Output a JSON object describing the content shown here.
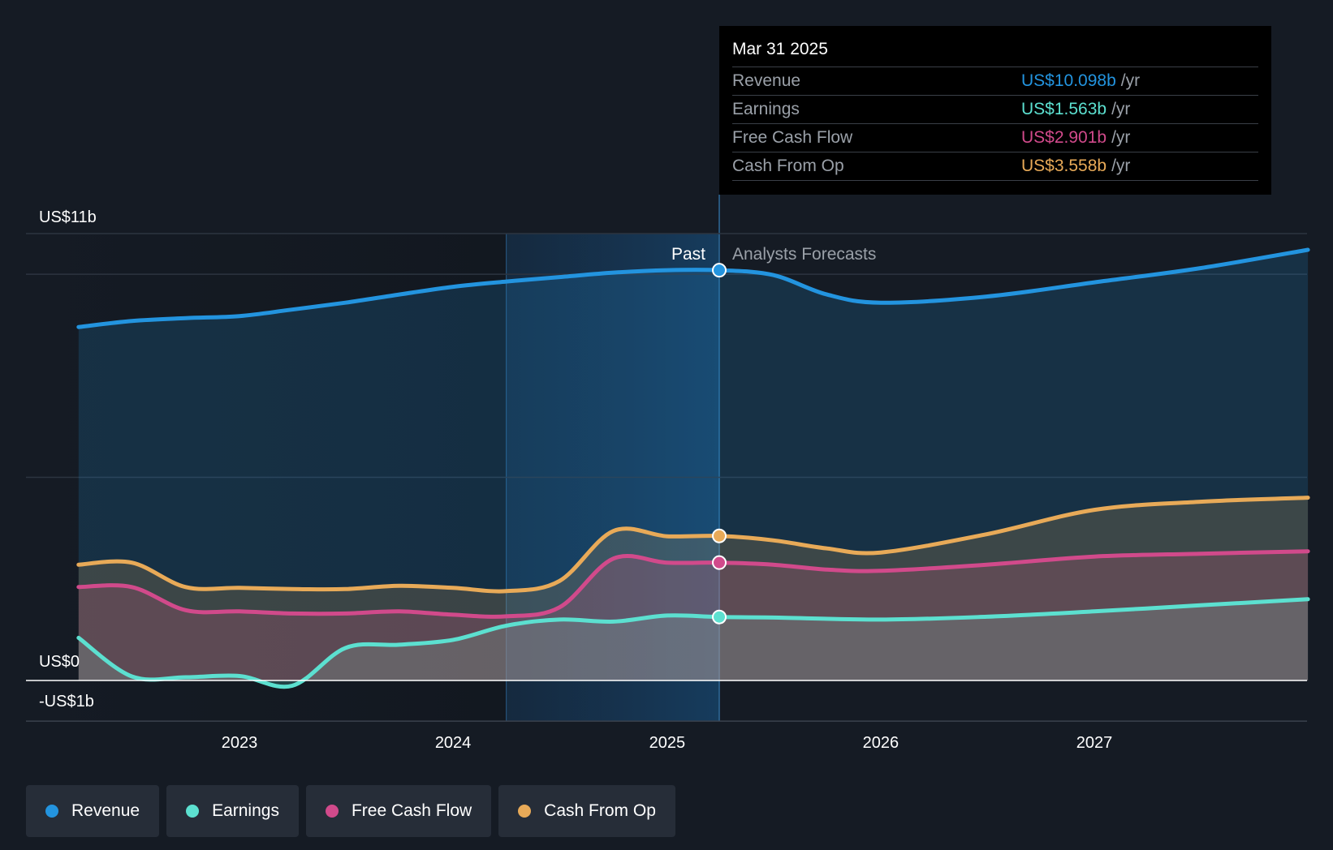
{
  "chart_data": {
    "type": "area",
    "y_unit": "US$ billions",
    "ylim": [
      -1,
      11
    ],
    "x_ticks": [
      "2023",
      "2024",
      "2025",
      "2026",
      "2027"
    ],
    "y_axis_labels": {
      "top": "US$11b",
      "zero": "US$0",
      "bottom": "-US$1b"
    },
    "past_label": "Past",
    "forecast_label": "Analysts Forecasts",
    "divider_date": "2025-03-31",
    "highlight_start": "2024-04-01",
    "grid": true,
    "legend_placement": "bottom-left",
    "series": [
      {
        "name": "Revenue",
        "color": "#2394df",
        "x": [
          "2022-04-01",
          "2022-07-01",
          "2022-10-01",
          "2023-01-01",
          "2023-04-01",
          "2023-07-01",
          "2023-10-01",
          "2024-01-01",
          "2024-04-01",
          "2024-07-01",
          "2024-10-01",
          "2025-01-01",
          "2025-03-31",
          "2025-07-01",
          "2025-10-01",
          "2026-01-01",
          "2026-07-01",
          "2027-01-01",
          "2027-07-01",
          "2028-01-01"
        ],
        "values": [
          8.7,
          8.85,
          8.92,
          8.97,
          9.13,
          9.3,
          9.5,
          9.69,
          9.82,
          9.93,
          10.04,
          10.1,
          10.098,
          9.98,
          9.5,
          9.3,
          9.45,
          9.8,
          10.15,
          10.6
        ]
      },
      {
        "name": "Earnings",
        "color": "#5ce0d0",
        "x": [
          "2022-04-01",
          "2022-07-01",
          "2022-10-01",
          "2023-01-01",
          "2023-04-01",
          "2023-07-01",
          "2023-10-01",
          "2024-01-01",
          "2024-04-01",
          "2024-07-01",
          "2024-10-01",
          "2025-01-01",
          "2025-03-31",
          "2025-07-01",
          "2026-01-01",
          "2026-07-01",
          "2027-01-01",
          "2027-07-01",
          "2028-01-01"
        ],
        "values": [
          1.05,
          0.1,
          0.08,
          0.11,
          -0.13,
          0.8,
          0.88,
          1.0,
          1.35,
          1.5,
          1.45,
          1.6,
          1.563,
          1.55,
          1.5,
          1.57,
          1.7,
          1.85,
          2.0
        ]
      },
      {
        "name": "Free Cash Flow",
        "color": "#d14a8b",
        "x": [
          "2022-04-01",
          "2022-07-01",
          "2022-10-01",
          "2023-01-01",
          "2023-04-01",
          "2023-07-01",
          "2023-10-01",
          "2024-01-01",
          "2024-04-01",
          "2024-07-01",
          "2024-10-01",
          "2025-01-01",
          "2025-03-31",
          "2025-07-01",
          "2025-10-01",
          "2026-01-01",
          "2026-07-01",
          "2027-01-01",
          "2027-07-01",
          "2028-01-01"
        ],
        "values": [
          2.3,
          2.3,
          1.73,
          1.7,
          1.65,
          1.65,
          1.7,
          1.62,
          1.58,
          1.8,
          3.0,
          2.9,
          2.901,
          2.85,
          2.73,
          2.7,
          2.85,
          3.05,
          3.12,
          3.18
        ]
      },
      {
        "name": "Cash From Op",
        "color": "#e8aa58",
        "x": [
          "2022-04-01",
          "2022-07-01",
          "2022-10-01",
          "2023-01-01",
          "2023-04-01",
          "2023-07-01",
          "2023-10-01",
          "2024-01-01",
          "2024-04-01",
          "2024-07-01",
          "2024-10-01",
          "2025-01-01",
          "2025-03-31",
          "2025-07-01",
          "2025-10-01",
          "2026-01-01",
          "2026-07-01",
          "2027-01-01",
          "2027-07-01",
          "2028-01-01"
        ],
        "values": [
          2.85,
          2.9,
          2.3,
          2.28,
          2.25,
          2.25,
          2.33,
          2.28,
          2.2,
          2.45,
          3.68,
          3.55,
          3.558,
          3.45,
          3.25,
          3.15,
          3.6,
          4.2,
          4.4,
          4.5
        ]
      }
    ]
  },
  "tooltip": {
    "date": "Mar 31 2025",
    "rows": [
      {
        "name": "Revenue",
        "value": "US$10.098b",
        "unit": "/yr",
        "color": "#2394df"
      },
      {
        "name": "Earnings",
        "value": "US$1.563b",
        "unit": "/yr",
        "color": "#5ce0d0"
      },
      {
        "name": "Free Cash Flow",
        "value": "US$2.901b",
        "unit": "/yr",
        "color": "#d14a8b"
      },
      {
        "name": "Cash From Op",
        "value": "US$3.558b",
        "unit": "/yr",
        "color": "#e8aa58"
      }
    ]
  },
  "legend": [
    {
      "label": "Revenue",
      "color": "#2394df"
    },
    {
      "label": "Earnings",
      "color": "#5ce0d0"
    },
    {
      "label": "Free Cash Flow",
      "color": "#d14a8b"
    },
    {
      "label": "Cash From Op",
      "color": "#e8aa58"
    }
  ]
}
